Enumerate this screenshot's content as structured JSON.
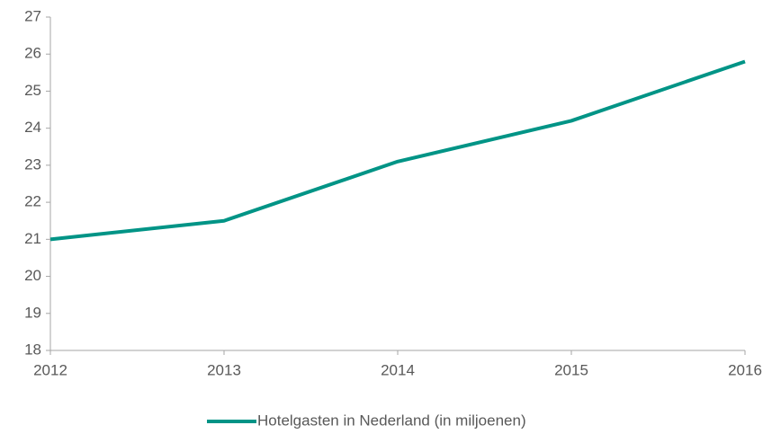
{
  "chart_data": {
    "type": "line",
    "x": [
      2012,
      2013,
      2014,
      2015,
      2016
    ],
    "series": [
      {
        "name": "Hotelgasten in Nederland (in miljoenen)",
        "color": "#009486",
        "values": [
          21.0,
          21.5,
          23.1,
          24.2,
          25.8
        ]
      }
    ],
    "xlim": [
      2012,
      2016
    ],
    "xticks": [
      2012,
      2013,
      2014,
      2015,
      2016
    ],
    "ylim": [
      18,
      27
    ],
    "yticks": [
      18,
      19,
      20,
      21,
      22,
      23,
      24,
      25,
      26,
      27
    ],
    "grid": false,
    "legend": "bottom"
  }
}
